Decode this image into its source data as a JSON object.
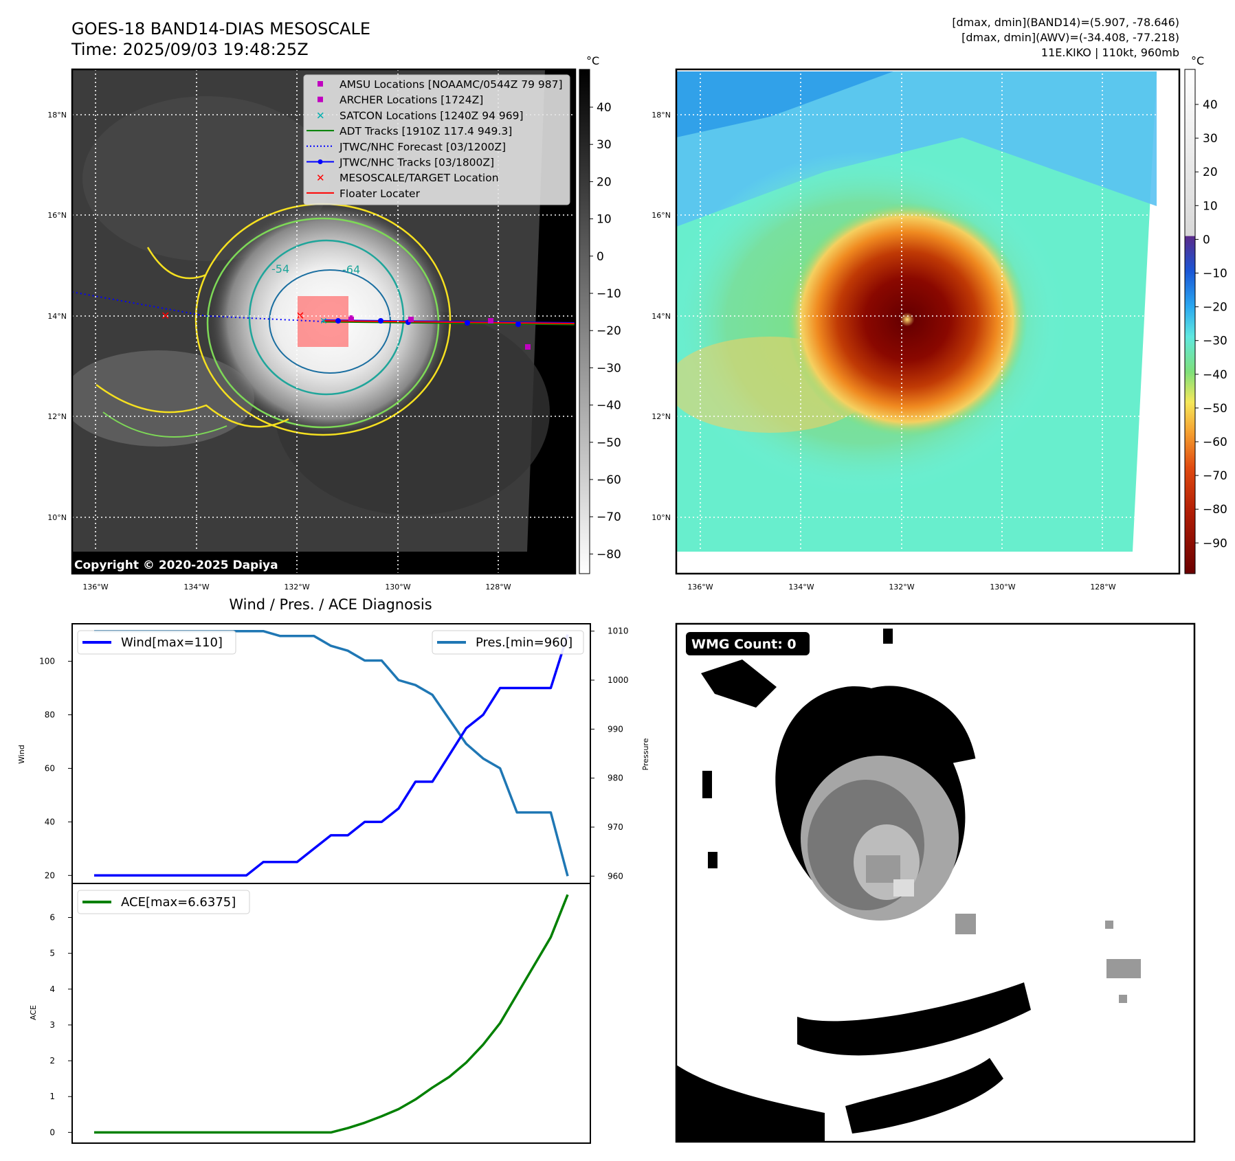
{
  "header": {
    "title_line1": "GOES-18 BAND14-DIAS MESOSCALE",
    "title_line2": "Time: 2025/09/03 19:48:25Z",
    "stats_line1": "[dmax, dmin](BAND14)=(5.907, -78.646)",
    "stats_line2": "[dmax, dmin](AWV)=(-34.408, -77.218)",
    "stats_line3": "11E.KIKO | 110kt, 960mb"
  },
  "map_axes": {
    "lat_labels": [
      "18°N",
      "16°N",
      "14°N",
      "12°N",
      "10°N"
    ],
    "lon_labels": [
      "136°W",
      "134°W",
      "132°W",
      "130°W",
      "128°W"
    ],
    "unit": "°C",
    "copyright": "Copyright © 2020-2025 Dapiya",
    "contour_labels": [
      "-54",
      "-64"
    ]
  },
  "legend": {
    "items": [
      {
        "label": "AMSU Locations [NOAAMC/0544Z 79 987]",
        "color": "#c000c0",
        "marker": "square"
      },
      {
        "label": "ARCHER Locations [1724Z]",
        "color": "#c000c0",
        "marker": "square"
      },
      {
        "label": "SATCON Locations [1240Z 94 969]",
        "color": "#00b0b0",
        "marker": "x"
      },
      {
        "label": "ADT Tracks [1910Z 117.4 949.3]",
        "color": "#008000",
        "marker": "line"
      },
      {
        "label": "JTWC/NHC Forecast [03/1200Z]",
        "color": "#0000ff",
        "marker": "dotted"
      },
      {
        "label": "JTWC/NHC Tracks [03/1800Z]",
        "color": "#0000ff",
        "marker": "line-dot"
      },
      {
        "label": "MESOSCALE/TARGET Location",
        "color": "#ff0000",
        "marker": "x"
      },
      {
        "label": "Floater Locater",
        "color": "#ff0000",
        "marker": "line"
      }
    ]
  },
  "colorbar_gray": {
    "ticks": [
      "40",
      "30",
      "20",
      "10",
      "0",
      "−10",
      "−20",
      "−30",
      "−40",
      "−50",
      "−60",
      "−70",
      "−80"
    ]
  },
  "colorbar_color": {
    "ticks": [
      "40",
      "30",
      "20",
      "10",
      "0",
      "−10",
      "−20",
      "−30",
      "−40",
      "−50",
      "−60",
      "−70",
      "−80",
      "−90"
    ]
  },
  "diagnosis": {
    "title": "Wind / Pres. / ACE Diagnosis",
    "wind_legend": "Wind[max=110]",
    "pres_legend": "Pres.[min=960]",
    "ace_legend": "ACE[max=6.6375]",
    "wind_ylabel": "Wind",
    "pres_ylabel": "Pressure",
    "ace_ylabel": "ACE",
    "wind_ticks": [
      "20",
      "40",
      "60",
      "80",
      "100"
    ],
    "pres_ticks": [
      "960",
      "970",
      "980",
      "990",
      "1000",
      "1010"
    ],
    "ace_ticks": [
      "0",
      "1",
      "2",
      "3",
      "4",
      "5",
      "6"
    ]
  },
  "wmg": {
    "label": "WMG Count: 0"
  },
  "chart_data": [
    {
      "type": "line",
      "title": "Wind / Pres. / ACE Diagnosis",
      "x": [
        0,
        1,
        2,
        3,
        4,
        5,
        6,
        7,
        8,
        9,
        10,
        11,
        12,
        13,
        14,
        15,
        16,
        17,
        18,
        19,
        20,
        21,
        22,
        23,
        24,
        25,
        26,
        27,
        28
      ],
      "series": [
        {
          "name": "Wind[max=110]",
          "axis": "left",
          "color": "#0000ff",
          "values": [
            20,
            20,
            20,
            20,
            20,
            20,
            20,
            20,
            20,
            20,
            25,
            25,
            25,
            30,
            35,
            35,
            40,
            40,
            45,
            55,
            55,
            65,
            75,
            80,
            90,
            90,
            90,
            90,
            110
          ]
        },
        {
          "name": "Pres.[min=960]",
          "axis": "right",
          "color": "#1f77b4",
          "values": [
            1010,
            1010,
            1010,
            1010,
            1010,
            1010,
            1010,
            1010,
            1010,
            1010,
            1010,
            1009,
            1009,
            1009,
            1007,
            1006,
            1004,
            1004,
            1000,
            999,
            997,
            992,
            987,
            984,
            982,
            973,
            973,
            973,
            960
          ]
        }
      ],
      "ylabel_left": "Wind",
      "ylim_left": [
        17,
        114
      ],
      "ylabel_right": "Pressure",
      "ylim_right": [
        958.5,
        1011.5
      ]
    },
    {
      "type": "line",
      "x": [
        0,
        1,
        2,
        3,
        4,
        5,
        6,
        7,
        8,
        9,
        10,
        11,
        12,
        13,
        14,
        15,
        16,
        17,
        18,
        19,
        20,
        21,
        22,
        23,
        24,
        25,
        26,
        27,
        28
      ],
      "series": [
        {
          "name": "ACE[max=6.6375]",
          "color": "#008000",
          "values": [
            0,
            0,
            0,
            0,
            0,
            0,
            0,
            0,
            0,
            0,
            0,
            0,
            0,
            0,
            0.0,
            0.12,
            0.27,
            0.45,
            0.65,
            0.92,
            1.25,
            1.55,
            1.95,
            2.45,
            3.05,
            3.85,
            4.65,
            5.45,
            6.6375
          ]
        }
      ],
      "ylabel": "ACE",
      "ylim": [
        -0.3,
        6.95
      ]
    }
  ]
}
